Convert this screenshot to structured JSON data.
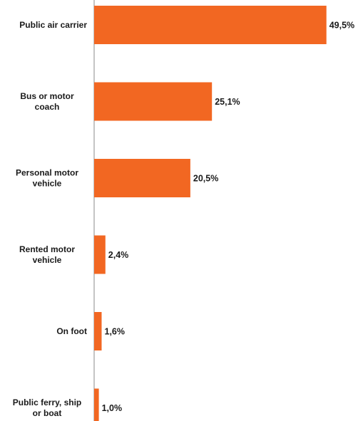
{
  "chart_data": {
    "type": "bar",
    "orientation": "horizontal",
    "categories": [
      "Public air carrier",
      "Bus or motor coach",
      "Personal motor vehicle",
      "Rented motor vehicle",
      "On foot",
      "Public ferry, ship or boat"
    ],
    "category_lines": [
      [
        "Public air carrier"
      ],
      [
        "Bus or motor",
        "coach"
      ],
      [
        "Personal motor",
        "vehicle"
      ],
      [
        "Rented motor",
        "vehicle"
      ],
      [
        "On foot"
      ],
      [
        "Public ferry, ship",
        "or boat"
      ]
    ],
    "values": [
      49.5,
      25.1,
      20.5,
      2.4,
      1.6,
      1.0
    ],
    "value_labels": [
      "49,5%",
      "25,1%",
      "20,5%",
      "2,4%",
      "1,6%",
      "1,0%"
    ],
    "xlim": [
      0,
      50
    ],
    "bar_color": "#f26722",
    "title": "",
    "xlabel": "",
    "ylabel": "",
    "grid": false,
    "legend": "none"
  }
}
